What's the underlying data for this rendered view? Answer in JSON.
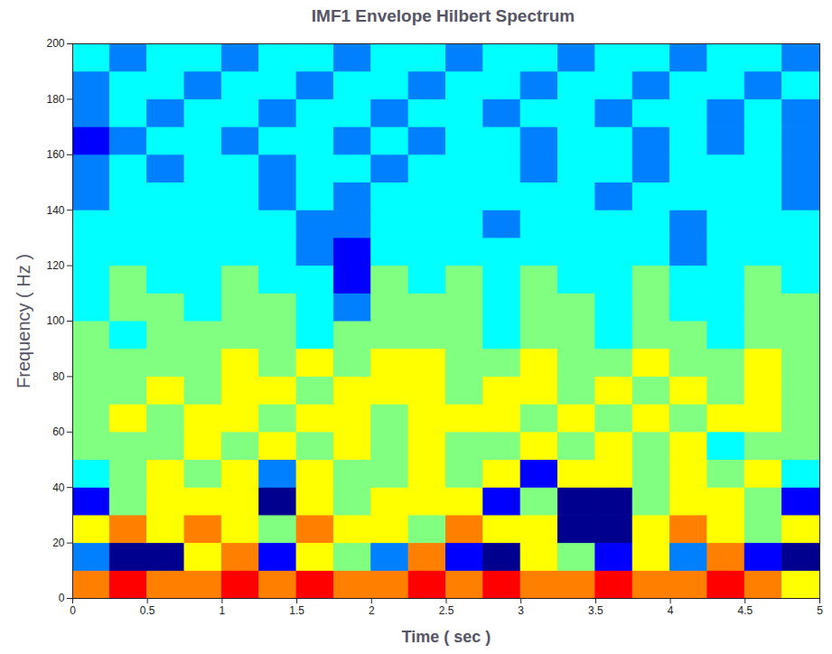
{
  "chart_data": {
    "type": "heatmap",
    "title": "IMF1 Envelope Hilbert Spectrum",
    "x_label": "Time ( sec )",
    "y_label": "Frequency ( Hz )",
    "xlim": [
      0,
      5
    ],
    "ylim": [
      0,
      200
    ],
    "xticks": [
      0,
      0.5,
      1,
      1.5,
      2,
      2.5,
      3,
      3.5,
      4,
      4.5,
      5
    ],
    "yticks": [
      0,
      20,
      40,
      60,
      80,
      100,
      120,
      140,
      160,
      180,
      200
    ],
    "x_edges": [
      0,
      0.25,
      0.5,
      0.75,
      1,
      1.25,
      1.5,
      1.75,
      2,
      2.25,
      2.5,
      2.75,
      3,
      3.25,
      3.5,
      3.75,
      4,
      4.25,
      4.5,
      4.75,
      5
    ],
    "y_edges": [
      0,
      10,
      20,
      30,
      40,
      50,
      60,
      70,
      80,
      90,
      100,
      110,
      120,
      130,
      140,
      150,
      160,
      170,
      180,
      190,
      200
    ],
    "cells": [
      [
        7,
        8,
        7,
        7,
        8,
        7,
        8,
        7,
        7,
        8,
        7,
        8,
        7,
        7,
        8,
        7,
        7,
        8,
        7,
        6
      ],
      [
        3,
        1,
        1,
        6,
        7,
        2,
        6,
        5,
        3,
        7,
        2,
        1,
        6,
        5,
        2,
        6,
        3,
        7,
        2,
        1
      ],
      [
        6,
        7,
        6,
        7,
        6,
        5,
        7,
        6,
        6,
        5,
        7,
        6,
        6,
        1,
        1,
        6,
        7,
        6,
        5,
        6
      ],
      [
        2,
        5,
        6,
        6,
        6,
        1,
        6,
        5,
        6,
        6,
        6,
        2,
        5,
        1,
        1,
        5,
        6,
        6,
        5,
        2
      ],
      [
        4,
        5,
        6,
        5,
        6,
        3,
        6,
        5,
        5,
        6,
        5,
        6,
        2,
        6,
        6,
        5,
        6,
        5,
        6,
        4
      ],
      [
        5,
        5,
        5,
        6,
        5,
        6,
        5,
        6,
        5,
        6,
        5,
        5,
        6,
        5,
        6,
        5,
        6,
        4,
        5,
        5
      ],
      [
        5,
        6,
        5,
        6,
        6,
        5,
        6,
        6,
        5,
        6,
        6,
        6,
        5,
        6,
        5,
        6,
        5,
        6,
        6,
        5
      ],
      [
        5,
        5,
        6,
        5,
        6,
        6,
        5,
        6,
        6,
        6,
        5,
        6,
        6,
        5,
        6,
        5,
        6,
        5,
        6,
        5
      ],
      [
        5,
        5,
        5,
        5,
        6,
        5,
        6,
        5,
        6,
        6,
        5,
        5,
        6,
        5,
        5,
        6,
        5,
        5,
        6,
        5
      ],
      [
        5,
        4,
        5,
        5,
        5,
        5,
        4,
        5,
        5,
        5,
        5,
        4,
        5,
        5,
        4,
        5,
        5,
        4,
        5,
        5
      ],
      [
        4,
        5,
        5,
        4,
        5,
        5,
        4,
        3,
        5,
        5,
        5,
        4,
        5,
        5,
        4,
        5,
        4,
        4,
        5,
        5
      ],
      [
        4,
        5,
        4,
        4,
        5,
        4,
        4,
        2,
        5,
        4,
        5,
        4,
        5,
        4,
        4,
        5,
        4,
        4,
        5,
        4
      ],
      [
        4,
        4,
        4,
        4,
        4,
        4,
        3,
        2,
        4,
        4,
        4,
        4,
        4,
        4,
        4,
        4,
        3,
        4,
        4,
        4
      ],
      [
        4,
        4,
        4,
        4,
        4,
        4,
        3,
        3,
        4,
        4,
        4,
        3,
        4,
        4,
        4,
        4,
        3,
        4,
        4,
        4
      ],
      [
        3,
        4,
        4,
        4,
        4,
        3,
        4,
        3,
        4,
        4,
        4,
        4,
        4,
        4,
        3,
        4,
        4,
        4,
        4,
        3
      ],
      [
        3,
        4,
        3,
        4,
        4,
        3,
        4,
        4,
        3,
        4,
        4,
        4,
        3,
        4,
        4,
        3,
        4,
        4,
        4,
        3
      ],
      [
        2,
        3,
        4,
        4,
        3,
        4,
        4,
        3,
        4,
        3,
        4,
        4,
        3,
        4,
        4,
        3,
        4,
        3,
        4,
        3
      ],
      [
        3,
        4,
        3,
        4,
        4,
        3,
        4,
        4,
        3,
        4,
        4,
        3,
        4,
        4,
        3,
        4,
        4,
        3,
        4,
        3
      ],
      [
        3,
        4,
        4,
        3,
        4,
        4,
        3,
        4,
        4,
        3,
        4,
        4,
        3,
        4,
        4,
        3,
        4,
        4,
        3,
        4
      ],
      [
        4,
        3,
        4,
        4,
        3,
        4,
        4,
        3,
        4,
        4,
        3,
        4,
        4,
        3,
        4,
        4,
        3,
        4,
        4,
        3
      ]
    ]
  }
}
